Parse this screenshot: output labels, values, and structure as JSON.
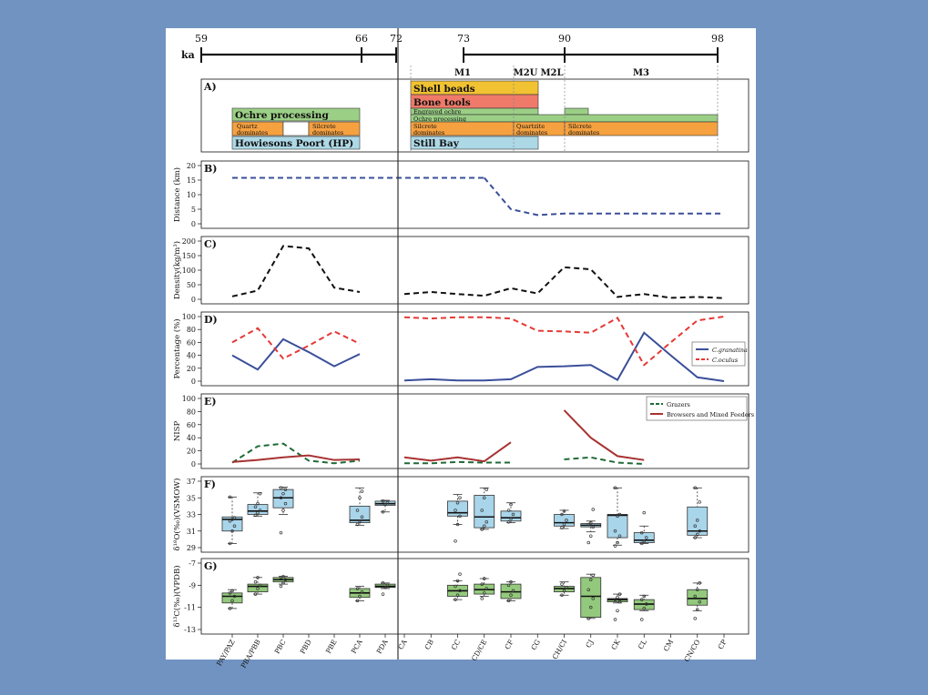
{
  "timeline": {
    "unit": "ka",
    "left_ticks": [
      "59",
      "66",
      "72"
    ],
    "right_ticks": [
      "73",
      "90",
      "98"
    ],
    "phases": [
      "M1",
      "M2U",
      "M2L",
      "M3"
    ]
  },
  "panel_a": {
    "label": "A)",
    "hp": {
      "ochre": "Ochre processing",
      "quartz": [
        "Quartz",
        "dominates"
      ],
      "silcrete": [
        "Silcrete",
        "dominates"
      ],
      "name": "Howiesons Poort (HP)"
    },
    "sb": {
      "shell": "Shell beads",
      "bone": "Bone tools",
      "engraved": "Engraved ochre",
      "ochre": "Ochre processing",
      "silcrete1": [
        "Silcrete",
        "dominates"
      ],
      "quartzite": [
        "Quartzite",
        "dominates"
      ],
      "silcrete2": [
        "Silcrete",
        "dominates"
      ],
      "name": "Still Bay"
    },
    "colors": {
      "ochre": "#9bcf86",
      "dominates": "#f5a140",
      "hp": "#add8e6",
      "shell": "#f1c232",
      "bone": "#ef7a6a"
    }
  },
  "x_categories": [
    "PAY/PAZ",
    "PBA/PBB",
    "PBC",
    "PBD",
    "PBE",
    "PCA",
    "PDA",
    "CA",
    "CB",
    "CC",
    "CD/CE",
    "CF",
    "CG",
    "CH/CI",
    "CJ",
    "CK",
    "CL",
    "CM",
    "CN/CO",
    "CP"
  ],
  "chart_data": [
    {
      "type": "line",
      "panel": "B)",
      "ylabel": "Distance (km)",
      "ylim": [
        0,
        20
      ],
      "yticks": [
        "0",
        "5",
        "10",
        "15",
        "20"
      ],
      "series": [
        {
          "x": [
            "PAY/PAZ",
            "CD/CE"
          ],
          "values": [
            15.8,
            15.8
          ],
          "color": "#3a4f9a"
        },
        {
          "x": [
            "CD/CE",
            "CF",
            "CG",
            "CH/CI",
            "CJ",
            "CK",
            "CL",
            "CM",
            "CN/CO",
            "CP"
          ],
          "values": [
            15.8,
            5,
            3,
            3.5,
            3.5,
            3.5,
            3.5,
            3.5,
            3.5,
            3.5
          ],
          "color": "#3a4f9a"
        }
      ]
    },
    {
      "type": "line",
      "panel": "C)",
      "ylabel": "Density(kg/m³)",
      "ylim": [
        0,
        200
      ],
      "yticks": [
        "0",
        "50",
        "100",
        "150",
        "200"
      ],
      "series": [
        {
          "x": [
            "PAY/PAZ",
            "PBA/PBB",
            "PBC",
            "PBD",
            "PBE",
            "PCA"
          ],
          "values": [
            10,
            30,
            183,
            175,
            40,
            25
          ],
          "color": "#111111"
        },
        {
          "x": [
            "CA",
            "CB",
            "CC",
            "CD/CE",
            "CF",
            "CG",
            "CH/CI",
            "CJ",
            "CK",
            "CL",
            "CM",
            "CN/CO",
            "CP"
          ],
          "values": [
            18,
            25,
            18,
            12,
            38,
            20,
            110,
            103,
            8,
            18,
            5,
            8,
            4
          ],
          "color": "#111111"
        }
      ]
    },
    {
      "type": "line",
      "panel": "D)",
      "ylabel": "Percentage (%)",
      "ylim": [
        0,
        100
      ],
      "yticks": [
        "0",
        "20",
        "40",
        "60",
        "80",
        "100"
      ],
      "legend": [
        "C.granatina",
        "C.oculus"
      ],
      "series": [
        {
          "name": "C.granatina",
          "x": [
            "PAY/PAZ",
            "PBA/PBB",
            "PBC",
            "PBD",
            "PBE",
            "PCA"
          ],
          "values": [
            40,
            18,
            65,
            45,
            23,
            42
          ],
          "color": "#3a4f9a",
          "dash": false
        },
        {
          "name": "C.granatina",
          "x": [
            "CA",
            "CB",
            "CC",
            "CD/CE",
            "CF",
            "CG",
            "CH/CI",
            "CJ",
            "CK",
            "CL",
            "CM",
            "CN/CO",
            "CP"
          ],
          "values": [
            1,
            3,
            1,
            1,
            3,
            22,
            23,
            25,
            2,
            75,
            40,
            6,
            0
          ],
          "color": "#3a4f9a",
          "dash": false
        },
        {
          "name": "C.oculus",
          "x": [
            "PAY/PAZ",
            "PBA/PBB",
            "PBC",
            "PBD",
            "PBE",
            "PCA"
          ],
          "values": [
            60,
            82,
            35,
            55,
            77,
            58
          ],
          "color": "#e53935",
          "dash": true
        },
        {
          "name": "C.oculus",
          "x": [
            "CA",
            "CB",
            "CC",
            "CD/CE",
            "CF",
            "CG",
            "CH/CI",
            "CJ",
            "CK",
            "CL",
            "CM",
            "CN/CO",
            "CP"
          ],
          "values": [
            99,
            97,
            99,
            99,
            97,
            78,
            77,
            75,
            98,
            25,
            60,
            94,
            100
          ],
          "color": "#e53935",
          "dash": true
        }
      ]
    },
    {
      "type": "line",
      "panel": "E)",
      "ylabel": "NISP",
      "ylim": [
        0,
        100
      ],
      "yticks": [
        "0",
        "20",
        "40",
        "60",
        "80",
        "100"
      ],
      "legend": [
        "Grazers",
        "Browsers and Mixed Feeders"
      ],
      "series": [
        {
          "name": "Grazers",
          "x": [
            "PAY/PAZ",
            "PBA/PBB",
            "PBC",
            "PBD",
            "PBE",
            "PCA"
          ],
          "values": [
            2,
            27,
            31,
            5,
            1,
            5
          ],
          "color": "#1f6b35",
          "dash": true
        },
        {
          "name": "Grazers",
          "x": [
            "CA",
            "CB",
            "CC",
            "CD/CE",
            "CF"
          ],
          "values": [
            1,
            1,
            3,
            2,
            2
          ],
          "color": "#1f6b35",
          "dash": true
        },
        {
          "name": "Grazers",
          "x": [
            "CH/CI",
            "CJ",
            "CK",
            "CL"
          ],
          "values": [
            7,
            10,
            2,
            0
          ],
          "color": "#1f6b35",
          "dash": true
        },
        {
          "name": "Browsers and Mixed Feeders",
          "x": [
            "PAY/PAZ",
            "PBA/PBB",
            "PBC",
            "PBD",
            "PBE",
            "PCA"
          ],
          "values": [
            3,
            6,
            10,
            13,
            6,
            7
          ],
          "color": "#a83232",
          "dash": false
        },
        {
          "name": "Browsers and Mixed Feeders",
          "x": [
            "CA",
            "CB",
            "CC",
            "CD/CE",
            "CF"
          ],
          "values": [
            10,
            5,
            10,
            4,
            33
          ],
          "color": "#a83232",
          "dash": false
        },
        {
          "name": "Browsers and Mixed Feeders",
          "x": [
            "CH/CI",
            "CJ",
            "CK",
            "CL"
          ],
          "values": [
            82,
            40,
            12,
            6
          ],
          "color": "#a83232",
          "dash": false
        }
      ]
    },
    {
      "type": "box",
      "panel": "F)",
      "ylabel": "δ¹⁸O(‰)(VSMOW)",
      "ylim": [
        29,
        37
      ],
      "yticks": [
        "29",
        "31",
        "33",
        "35",
        "37"
      ],
      "color": "#a9d5ea",
      "boxes": [
        {
          "x": "PAY/PAZ",
          "min": 29.5,
          "q1": 31.0,
          "med": 32.4,
          "q3": 32.7,
          "max": 35.1,
          "pts": [
            29.5,
            31.0,
            31.6,
            32.2,
            32.4,
            32.6,
            35.1
          ]
        },
        {
          "x": "PBA/PBB",
          "min": 32.8,
          "q1": 33.0,
          "med": 33.4,
          "q3": 34.2,
          "max": 35.6,
          "pts": [
            32.9,
            33.2,
            33.5,
            33.9,
            34.3,
            35.5
          ]
        },
        {
          "x": "PBC",
          "min": 33.0,
          "q1": 33.8,
          "med": 35.0,
          "q3": 36.0,
          "max": 36.3,
          "pts": [
            30.8,
            33.5,
            34.3,
            35.0,
            35.5,
            36.0,
            36.2
          ]
        },
        {
          "x": "PCA",
          "min": 31.7,
          "q1": 32.0,
          "med": 32.3,
          "q3": 34.0,
          "max": 36.2,
          "pts": [
            31.8,
            32.2,
            32.7,
            33.5,
            35.0,
            35.8
          ]
        },
        {
          "x": "PDA",
          "min": 33.3,
          "q1": 34.1,
          "med": 34.3,
          "q3": 34.6,
          "max": 34.7,
          "pts": [
            33.3,
            34.2,
            34.4,
            34.6
          ]
        },
        {
          "x": "CC",
          "min": 31.8,
          "q1": 32.8,
          "med": 33.2,
          "q3": 34.6,
          "max": 35.4,
          "pts": [
            29.8,
            31.8,
            32.8,
            33.5,
            34.4,
            35.0
          ]
        },
        {
          "x": "CD/CE",
          "min": 31.2,
          "q1": 31.4,
          "med": 32.7,
          "q3": 35.3,
          "max": 36.2,
          "pts": [
            31.2,
            31.6,
            32.1,
            33.5,
            35.0,
            36.0
          ]
        },
        {
          "x": "CF",
          "min": 32.0,
          "q1": 32.2,
          "med": 32.6,
          "q3": 33.4,
          "max": 34.4,
          "pts": [
            32.1,
            32.5,
            33.0,
            33.5,
            34.2
          ]
        },
        {
          "x": "CH/CI",
          "min": 31.3,
          "q1": 31.6,
          "med": 32.0,
          "q3": 33.0,
          "max": 33.5,
          "pts": [
            31.4,
            31.8,
            32.3,
            33.0,
            33.4
          ]
        },
        {
          "x": "CJ",
          "min": 30.9,
          "q1": 31.5,
          "med": 31.7,
          "q3": 31.9,
          "max": 32.2,
          "pts": [
            29.6,
            30.4,
            31.5,
            31.8,
            32.0,
            33.6
          ]
        },
        {
          "x": "CK",
          "min": 29.3,
          "q1": 30.2,
          "med": 32.9,
          "q3": 33.0,
          "max": 36.2,
          "pts": [
            29.2,
            29.6,
            30.4,
            31.0,
            32.8,
            33.0,
            36.2
          ]
        },
        {
          "x": "CL",
          "min": 29.5,
          "q1": 29.6,
          "med": 29.9,
          "q3": 30.8,
          "max": 31.6,
          "pts": [
            29.5,
            29.8,
            30.2,
            30.8,
            33.2
          ]
        },
        {
          "x": "CN/CO",
          "min": 30.2,
          "q1": 30.5,
          "med": 31.0,
          "q3": 33.9,
          "max": 36.2,
          "pts": [
            30.2,
            30.6,
            31.0,
            31.6,
            32.3,
            34.5,
            36.2
          ]
        }
      ]
    },
    {
      "type": "box",
      "panel": "G)",
      "ylabel": "δ¹³C(‰)(VPDB)",
      "ylim": [
        -13,
        -7
      ],
      "yticks": [
        "-13",
        "-11",
        "-9",
        "-7"
      ],
      "color": "#93c97c",
      "boxes": [
        {
          "x": "PAY/PAZ",
          "min": -11.1,
          "q1": -10.6,
          "med": -10.0,
          "q3": -9.7,
          "max": -9.4,
          "pts": [
            -11.1,
            -10.4,
            -10.0,
            -9.7,
            -9.5
          ]
        },
        {
          "x": "PBA/PBB",
          "min": -9.8,
          "q1": -9.6,
          "med": -9.1,
          "q3": -8.9,
          "max": -8.3,
          "pts": [
            -9.8,
            -9.3,
            -9.0,
            -8.7,
            -8.3
          ]
        },
        {
          "x": "PBC",
          "min": -8.9,
          "q1": -8.7,
          "med": -8.5,
          "q3": -8.3,
          "max": -8.2,
          "pts": [
            -9.1,
            -8.8,
            -8.5,
            -8.3,
            -8.2
          ]
        },
        {
          "x": "PCA",
          "min": -10.4,
          "q1": -10.1,
          "med": -9.7,
          "q3": -9.3,
          "max": -9.1,
          "pts": [
            -10.4,
            -10.0,
            -9.6,
            -9.3
          ]
        },
        {
          "x": "PDA",
          "min": -9.3,
          "q1": -9.2,
          "med": -9.1,
          "q3": -8.9,
          "max": -8.8,
          "pts": [
            -9.8,
            -9.2,
            -9.0,
            -8.8
          ]
        },
        {
          "x": "CC",
          "min": -10.3,
          "q1": -10.0,
          "med": -9.5,
          "q3": -9.0,
          "max": -8.6,
          "pts": [
            -10.3,
            -9.9,
            -9.5,
            -9.1,
            -8.6,
            -8.0
          ]
        },
        {
          "x": "CD/CE",
          "min": -10.0,
          "q1": -9.8,
          "med": -9.4,
          "q3": -8.9,
          "max": -8.4,
          "pts": [
            -10.2,
            -9.7,
            -9.3,
            -8.9,
            -8.4
          ]
        },
        {
          "x": "CF",
          "min": -10.4,
          "q1": -10.2,
          "med": -9.6,
          "q3": -8.9,
          "max": -8.7,
          "pts": [
            -10.4,
            -9.9,
            -9.5,
            -9.0,
            -8.7
          ]
        },
        {
          "x": "CH/CI",
          "min": -9.9,
          "q1": -9.6,
          "med": -9.3,
          "q3": -9.1,
          "max": -8.7,
          "pts": [
            -9.9,
            -9.5,
            -9.2,
            -8.9
          ]
        },
        {
          "x": "CJ",
          "min": -12.0,
          "q1": -11.9,
          "med": -10.0,
          "q3": -8.3,
          "max": -8.0,
          "pts": [
            -12.0,
            -11.0,
            -10.2,
            -9.4,
            -8.5,
            -8.1
          ]
        },
        {
          "x": "CK",
          "min": -10.6,
          "q1": -10.5,
          "med": -10.3,
          "q3": -10.2,
          "max": -9.8,
          "pts": [
            -12.1,
            -11.3,
            -10.5,
            -10.3,
            -10.1,
            -9.8
          ]
        },
        {
          "x": "CL",
          "min": -11.3,
          "q1": -11.2,
          "med": -10.7,
          "q3": -10.3,
          "max": -9.9,
          "pts": [
            -12.1,
            -11.1,
            -10.7,
            -10.3,
            -10.0
          ]
        },
        {
          "x": "CN/CO",
          "min": -11.3,
          "q1": -10.8,
          "med": -10.2,
          "q3": -9.4,
          "max": -8.8,
          "pts": [
            -12.0,
            -11.2,
            -10.5,
            -10.0,
            -9.4,
            -8.8
          ]
        }
      ]
    }
  ]
}
